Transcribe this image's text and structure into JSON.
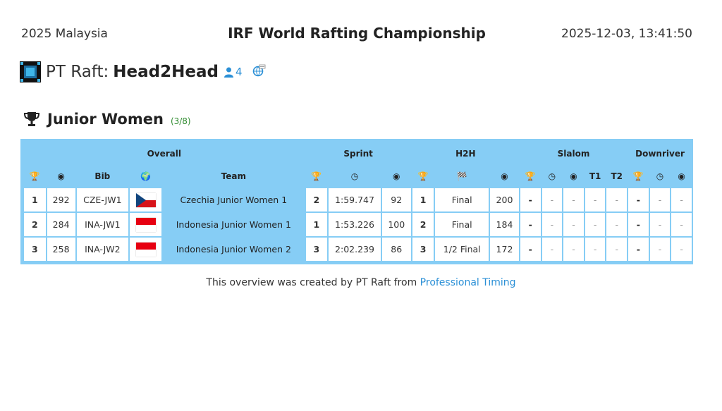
{
  "header": {
    "left": "2025 Malaysia",
    "title": "IRF World Rafting Championship",
    "datetime": "2025-12-03, 13:41:50"
  },
  "app": {
    "name": "PT Raft:",
    "mode": "Head2Head",
    "user_count": "4",
    "icons": [
      "raft-logo-icon",
      "user-icon",
      "globe-refresh-icon"
    ]
  },
  "category": {
    "title": "Junior Women",
    "count": "(3/8)"
  },
  "table": {
    "groups": {
      "overall": "Overall",
      "sprint": "Sprint",
      "h2h": "H2H",
      "slalom": "Slalom",
      "downriver": "Downriver"
    },
    "columns": {
      "bib": "Bib",
      "team": "Team",
      "t1": "T1",
      "t2": "T2"
    },
    "rows": [
      {
        "rank": "1",
        "points": "292",
        "bib": "CZE-JW1",
        "flag": "cz",
        "team": "Czechia Junior Women 1",
        "sprint_rank": "2",
        "sprint_time": "1:59.747",
        "sprint_points": "92",
        "h2h_rank": "1",
        "h2h_stage": "Final",
        "h2h_points": "200",
        "slalom": [
          "-",
          "-",
          "-",
          "-",
          "-"
        ],
        "downriver": [
          "-",
          "-",
          "-"
        ]
      },
      {
        "rank": "2",
        "points": "284",
        "bib": "INA-JW1",
        "flag": "id",
        "team": "Indonesia Junior Women 1",
        "sprint_rank": "1",
        "sprint_time": "1:53.226",
        "sprint_points": "100",
        "h2h_rank": "2",
        "h2h_stage": "Final",
        "h2h_points": "184",
        "slalom": [
          "-",
          "-",
          "-",
          "-",
          "-"
        ],
        "downriver": [
          "-",
          "-",
          "-"
        ]
      },
      {
        "rank": "3",
        "points": "258",
        "bib": "INA-JW2",
        "flag": "id",
        "team": "Indonesia Junior Women 2",
        "sprint_rank": "3",
        "sprint_time": "2:02.239",
        "sprint_points": "86",
        "h2h_rank": "3",
        "h2h_stage": "1/2 Final",
        "h2h_points": "172",
        "slalom": [
          "-",
          "-",
          "-",
          "-",
          "-"
        ],
        "downriver": [
          "-",
          "-",
          "-"
        ]
      }
    ]
  },
  "footer": {
    "text": "This overview was created by PT Raft from",
    "link": "Professional Timing"
  }
}
